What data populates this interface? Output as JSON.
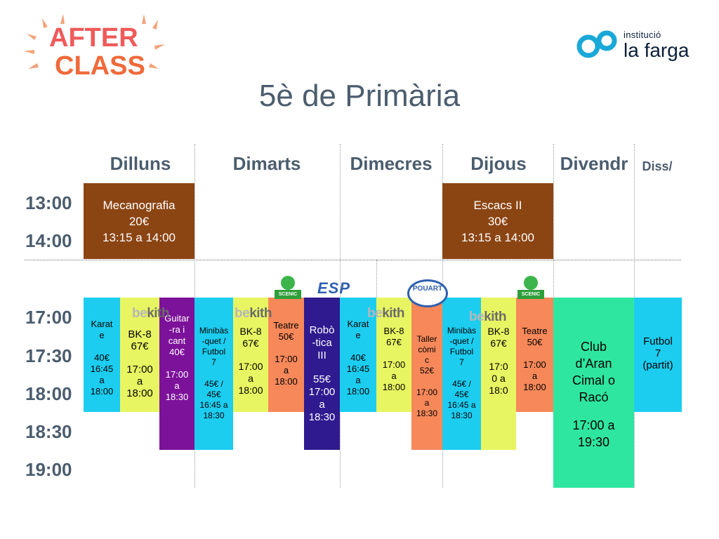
{
  "header": {
    "logo_left_line1": "AFTER",
    "logo_left_line2": "CLASS",
    "logo_right_small": "institució",
    "logo_right_big": "la farga",
    "title": "5è de Primària"
  },
  "days": [
    "Dilluns",
    "Dimarts",
    "Dimecres",
    "Dijous",
    "Divendr",
    "Diss/"
  ],
  "times": [
    "13:00",
    "14:00",
    "17:00",
    "17:30",
    "18:00",
    "18:30",
    "19:00"
  ],
  "providers": {
    "bekith_be": "be",
    "bekith_kith": "kith",
    "scenic": "SCENIC",
    "esp": "ESP",
    "pou_line1": "POU",
    "pou_line2": "ART"
  },
  "activities": {
    "mon_mecanografia": [
      "Mecanografia",
      "20€",
      "13:15 a 14:00"
    ],
    "thu_escacs": [
      "Escacs II",
      "30€",
      "13:15 a 14:00"
    ],
    "mon_karate": [
      "Karat",
      "e",
      "",
      "40€",
      "16:45",
      "a",
      "18:00"
    ],
    "mon_bk8": [
      "BK-8",
      "67€",
      "",
      "17:00",
      "a",
      "18:00"
    ],
    "mon_guitarra": [
      "Guitar",
      "-ra i",
      "cant",
      "40€",
      "",
      "17:00",
      "a",
      "18:30"
    ],
    "tue_minibasquet": [
      "Minibàs",
      "-quet /",
      "Futbol",
      "7",
      "",
      "45€ /",
      "45€",
      "16:45 a",
      "18:30"
    ],
    "tue_bk8": [
      "BK-8",
      "67€",
      "",
      "17:00",
      "a",
      "18:00"
    ],
    "tue_teatre": [
      "Teatre",
      "50€",
      "",
      "17:00",
      "a",
      "18:00"
    ],
    "tue_robotica": [
      "Robò",
      "-tica",
      "III",
      "",
      "55€",
      "17:00",
      "a",
      "18:30"
    ],
    "wed_karate": [
      "Karat",
      "e",
      "",
      "40€",
      "16:45",
      "a",
      "18:00"
    ],
    "wed_bk8": [
      "BK-8",
      "67€",
      "",
      "17:00",
      "a",
      "18:00"
    ],
    "wed_taller": [
      "Taller",
      "còmi",
      "c",
      "52€",
      "",
      "17:00",
      "a",
      "18:30"
    ],
    "thu_minibasquet": [
      "Minibàs",
      "-quet /",
      "Futbol",
      "7",
      "",
      "45€ /",
      "45€",
      "16:45 a",
      "18:30"
    ],
    "thu_bk8": [
      "BK-8",
      "67€",
      "",
      "17:0",
      "0 a",
      "18:0"
    ],
    "thu_teatre": [
      "Teatre",
      "50€",
      "",
      "17:00",
      "a",
      "18:00"
    ],
    "fri_club": [
      "Club",
      "d’Aran",
      "Cimal o",
      "Racó",
      "",
      "17:00 a",
      "19:30"
    ],
    "sat_futbol": [
      "Futbol",
      "7",
      "(partit)"
    ]
  },
  "colors": {
    "brown": "#8b4513",
    "cyan": "#1ccdf0",
    "yellow": "#e8f562",
    "purple": "#7c129a",
    "orange": "#f6885a",
    "indigo": "#2f1a8f",
    "green": "#2fe6a0",
    "title": "#4b5d6e"
  }
}
